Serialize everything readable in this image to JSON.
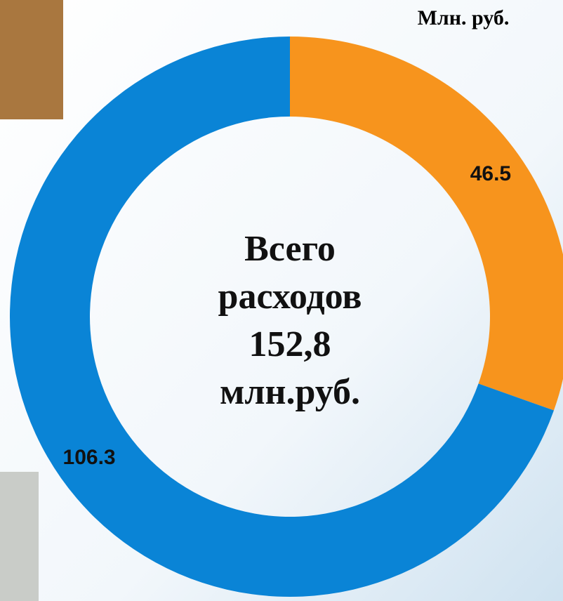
{
  "chart_data": {
    "type": "donut",
    "unit_label": "Млн. руб.",
    "center_text": [
      "Всего",
      "расходов",
      "152,8",
      "млн.руб."
    ],
    "categories": [
      null,
      null
    ],
    "values": [
      46.5,
      106.3
    ],
    "colors": [
      "#f7941d",
      "#0a84d6"
    ]
  }
}
